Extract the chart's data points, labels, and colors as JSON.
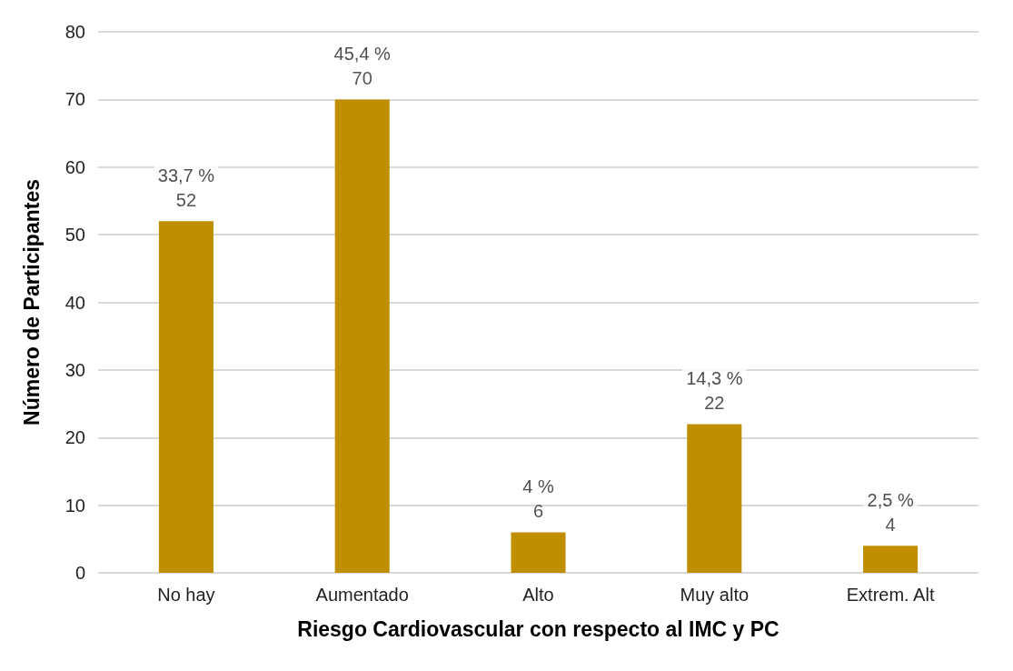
{
  "chart_data": {
    "type": "bar",
    "xlabel": "Riesgo Cardiovascular con respecto al IMC y PC",
    "ylabel": "Número de Participantes",
    "categories": [
      "No hay",
      "Aumentado",
      "Alto",
      "Muy alto",
      "Extrem. Alt"
    ],
    "values": [
      52,
      70,
      6,
      22,
      4
    ],
    "annotations": [
      {
        "text": "33,7 %",
        "x": "No hay",
        "y": 52
      },
      {
        "text": "45,4 %",
        "x": "Aumentado",
        "y": 70
      },
      {
        "text": "4 %",
        "x": "Alto",
        "y": 6
      },
      {
        "text": "14,3 %",
        "x": "Muy alto",
        "y": 22
      },
      {
        "text": "2,5 %",
        "x": "Extrem. Alt",
        "y": 4
      }
    ],
    "data_labels": true,
    "color": "#bf8f00",
    "ylim": [
      0,
      80
    ],
    "yticks": [
      0,
      10,
      20,
      30,
      40,
      50,
      60,
      70,
      80
    ],
    "grid": "y"
  }
}
